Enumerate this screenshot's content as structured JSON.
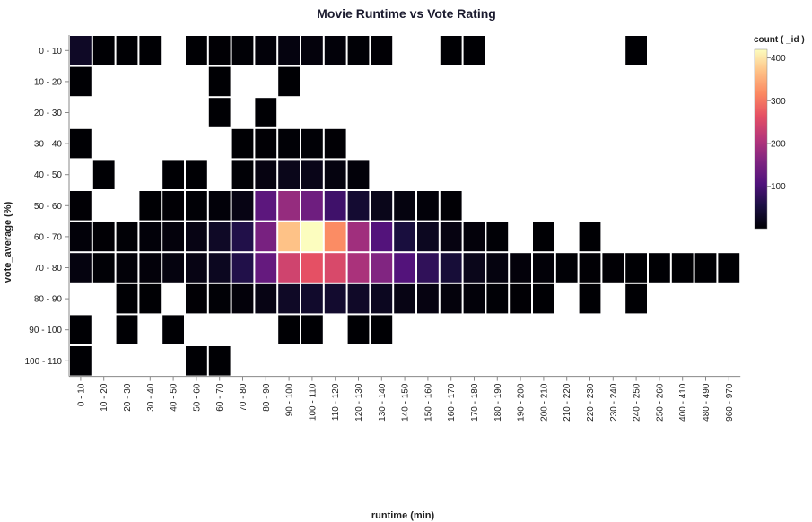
{
  "chart_data": {
    "type": "heatmap",
    "title": "Movie Runtime vs Vote Rating",
    "xlabel": "runtime (min)",
    "ylabel": "vote_average (%)",
    "x_categories": [
      "0 - 10",
      "10 - 20",
      "20 - 30",
      "30 - 40",
      "40 - 50",
      "50 - 60",
      "60 - 70",
      "70 - 80",
      "80 - 90",
      "90 - 100",
      "100 - 110",
      "110 - 120",
      "120 - 130",
      "130 - 140",
      "140 - 150",
      "150 - 160",
      "160 - 170",
      "170 - 180",
      "180 - 190",
      "190 - 200",
      "200 - 210",
      "210 - 220",
      "220 - 230",
      "230 - 240",
      "240 - 250",
      "250 - 260",
      "400 - 410",
      "480 - 490",
      "960 - 970"
    ],
    "y_categories": [
      "0 - 10",
      "10 - 20",
      "20 - 30",
      "30 - 40",
      "40 - 50",
      "50 - 60",
      "60 - 70",
      "70 - 80",
      "80 - 90",
      "90 - 100",
      "100 - 110"
    ],
    "legend": {
      "title": "count ( _id )",
      "ticks": [
        100,
        200,
        300,
        400
      ],
      "domain": [
        1,
        420
      ],
      "placement": "top-right"
    },
    "cells": [
      {
        "x": "0 - 10",
        "y": "0 - 10",
        "value": 30
      },
      {
        "x": "10 - 20",
        "y": "0 - 10",
        "value": 1
      },
      {
        "x": "20 - 30",
        "y": "0 - 10",
        "value": 1
      },
      {
        "x": "30 - 40",
        "y": "0 - 10",
        "value": 1
      },
      {
        "x": "50 - 60",
        "y": "0 - 10",
        "value": 1
      },
      {
        "x": "60 - 70",
        "y": "0 - 10",
        "value": 2
      },
      {
        "x": "70 - 80",
        "y": "0 - 10",
        "value": 3
      },
      {
        "x": "80 - 90",
        "y": "0 - 10",
        "value": 5
      },
      {
        "x": "90 - 100",
        "y": "0 - 10",
        "value": 10
      },
      {
        "x": "100 - 110",
        "y": "0 - 10",
        "value": 8
      },
      {
        "x": "110 - 120",
        "y": "0 - 10",
        "value": 5
      },
      {
        "x": "120 - 130",
        "y": "0 - 10",
        "value": 3
      },
      {
        "x": "130 - 140",
        "y": "0 - 10",
        "value": 2
      },
      {
        "x": "160 - 170",
        "y": "0 - 10",
        "value": 1
      },
      {
        "x": "170 - 180",
        "y": "0 - 10",
        "value": 1
      },
      {
        "x": "240 - 250",
        "y": "0 - 10",
        "value": 1
      },
      {
        "x": "0 - 10",
        "y": "10 - 20",
        "value": 1
      },
      {
        "x": "60 - 70",
        "y": "10 - 20",
        "value": 1
      },
      {
        "x": "90 - 100",
        "y": "10 - 20",
        "value": 1
      },
      {
        "x": "60 - 70",
        "y": "20 - 30",
        "value": 1
      },
      {
        "x": "80 - 90",
        "y": "20 - 30",
        "value": 1
      },
      {
        "x": "0 - 10",
        "y": "30 - 40",
        "value": 1
      },
      {
        "x": "70 - 80",
        "y": "30 - 40",
        "value": 1
      },
      {
        "x": "80 - 90",
        "y": "30 - 40",
        "value": 2
      },
      {
        "x": "90 - 100",
        "y": "30 - 40",
        "value": 3
      },
      {
        "x": "100 - 110",
        "y": "30 - 40",
        "value": 3
      },
      {
        "x": "110 - 120",
        "y": "30 - 40",
        "value": 2
      },
      {
        "x": "10 - 20",
        "y": "40 - 50",
        "value": 1
      },
      {
        "x": "40 - 50",
        "y": "40 - 50",
        "value": 1
      },
      {
        "x": "50 - 60",
        "y": "40 - 50",
        "value": 1
      },
      {
        "x": "70 - 80",
        "y": "40 - 50",
        "value": 3
      },
      {
        "x": "80 - 90",
        "y": "40 - 50",
        "value": 12
      },
      {
        "x": "90 - 100",
        "y": "40 - 50",
        "value": 20
      },
      {
        "x": "100 - 110",
        "y": "40 - 50",
        "value": 18
      },
      {
        "x": "110 - 120",
        "y": "40 - 50",
        "value": 10
      },
      {
        "x": "120 - 130",
        "y": "40 - 50",
        "value": 5
      },
      {
        "x": "0 - 10",
        "y": "50 - 60",
        "value": 2
      },
      {
        "x": "30 - 40",
        "y": "50 - 60",
        "value": 1
      },
      {
        "x": "40 - 50",
        "y": "50 - 60",
        "value": 2
      },
      {
        "x": "50 - 60",
        "y": "50 - 60",
        "value": 3
      },
      {
        "x": "60 - 70",
        "y": "50 - 60",
        "value": 5
      },
      {
        "x": "70 - 80",
        "y": "50 - 60",
        "value": 15
      },
      {
        "x": "80 - 90",
        "y": "50 - 60",
        "value": 120
      },
      {
        "x": "90 - 100",
        "y": "50 - 60",
        "value": 180
      },
      {
        "x": "100 - 110",
        "y": "50 - 60",
        "value": 140
      },
      {
        "x": "110 - 120",
        "y": "50 - 60",
        "value": 90
      },
      {
        "x": "120 - 130",
        "y": "50 - 60",
        "value": 40
      },
      {
        "x": "130 - 140",
        "y": "50 - 60",
        "value": 20
      },
      {
        "x": "140 - 150",
        "y": "50 - 60",
        "value": 10
      },
      {
        "x": "150 - 160",
        "y": "50 - 60",
        "value": 5
      },
      {
        "x": "160 - 170",
        "y": "50 - 60",
        "value": 2
      },
      {
        "x": "0 - 10",
        "y": "60 - 70",
        "value": 5
      },
      {
        "x": "10 - 20",
        "y": "60 - 70",
        "value": 2
      },
      {
        "x": "20 - 30",
        "y": "60 - 70",
        "value": 3
      },
      {
        "x": "30 - 40",
        "y": "60 - 70",
        "value": 5
      },
      {
        "x": "40 - 50",
        "y": "60 - 70",
        "value": 8
      },
      {
        "x": "50 - 60",
        "y": "60 - 70",
        "value": 15
      },
      {
        "x": "60 - 70",
        "y": "60 - 70",
        "value": 30
      },
      {
        "x": "70 - 80",
        "y": "60 - 70",
        "value": 60
      },
      {
        "x": "80 - 90",
        "y": "60 - 70",
        "value": 150
      },
      {
        "x": "90 - 100",
        "y": "60 - 70",
        "value": 370
      },
      {
        "x": "100 - 110",
        "y": "60 - 70",
        "value": 420
      },
      {
        "x": "110 - 120",
        "y": "60 - 70",
        "value": 320
      },
      {
        "x": "120 - 130",
        "y": "60 - 70",
        "value": 190
      },
      {
        "x": "130 - 140",
        "y": "60 - 70",
        "value": 110
      },
      {
        "x": "140 - 150",
        "y": "60 - 70",
        "value": 50
      },
      {
        "x": "150 - 160",
        "y": "60 - 70",
        "value": 25
      },
      {
        "x": "160 - 170",
        "y": "60 - 70",
        "value": 12
      },
      {
        "x": "170 - 180",
        "y": "60 - 70",
        "value": 6
      },
      {
        "x": "180 - 190",
        "y": "60 - 70",
        "value": 3
      },
      {
        "x": "200 - 210",
        "y": "60 - 70",
        "value": 1
      },
      {
        "x": "220 - 230",
        "y": "60 - 70",
        "value": 1
      },
      {
        "x": "0 - 10",
        "y": "70 - 80",
        "value": 10
      },
      {
        "x": "10 - 20",
        "y": "70 - 80",
        "value": 3
      },
      {
        "x": "20 - 30",
        "y": "70 - 80",
        "value": 4
      },
      {
        "x": "30 - 40",
        "y": "70 - 80",
        "value": 6
      },
      {
        "x": "40 - 50",
        "y": "70 - 80",
        "value": 10
      },
      {
        "x": "50 - 60",
        "y": "70 - 80",
        "value": 15
      },
      {
        "x": "60 - 70",
        "y": "70 - 80",
        "value": 25
      },
      {
        "x": "70 - 80",
        "y": "70 - 80",
        "value": 60
      },
      {
        "x": "80 - 90",
        "y": "70 - 80",
        "value": 130
      },
      {
        "x": "90 - 100",
        "y": "70 - 80",
        "value": 240
      },
      {
        "x": "100 - 110",
        "y": "70 - 80",
        "value": 265
      },
      {
        "x": "110 - 120",
        "y": "70 - 80",
        "value": 250
      },
      {
        "x": "120 - 130",
        "y": "70 - 80",
        "value": 200
      },
      {
        "x": "130 - 140",
        "y": "70 - 80",
        "value": 160
      },
      {
        "x": "140 - 150",
        "y": "70 - 80",
        "value": 110
      },
      {
        "x": "150 - 160",
        "y": "70 - 80",
        "value": 75
      },
      {
        "x": "160 - 170",
        "y": "70 - 80",
        "value": 45
      },
      {
        "x": "170 - 180",
        "y": "70 - 80",
        "value": 20
      },
      {
        "x": "180 - 190",
        "y": "70 - 80",
        "value": 10
      },
      {
        "x": "190 - 200",
        "y": "70 - 80",
        "value": 6
      },
      {
        "x": "200 - 210",
        "y": "70 - 80",
        "value": 4
      },
      {
        "x": "210 - 220",
        "y": "70 - 80",
        "value": 3
      },
      {
        "x": "220 - 230",
        "y": "70 - 80",
        "value": 2
      },
      {
        "x": "230 - 240",
        "y": "70 - 80",
        "value": 2
      },
      {
        "x": "240 - 250",
        "y": "70 - 80",
        "value": 1
      },
      {
        "x": "250 - 260",
        "y": "70 - 80",
        "value": 1
      },
      {
        "x": "400 - 410",
        "y": "70 - 80",
        "value": 1
      },
      {
        "x": "480 - 490",
        "y": "70 - 80",
        "value": 1
      },
      {
        "x": "960 - 970",
        "y": "70 - 80",
        "value": 1
      },
      {
        "x": "20 - 30",
        "y": "80 - 90",
        "value": 1
      },
      {
        "x": "30 - 40",
        "y": "80 - 90",
        "value": 1
      },
      {
        "x": "50 - 60",
        "y": "80 - 90",
        "value": 2
      },
      {
        "x": "60 - 70",
        "y": "80 - 90",
        "value": 3
      },
      {
        "x": "70 - 80",
        "y": "80 - 90",
        "value": 6
      },
      {
        "x": "80 - 90",
        "y": "80 - 90",
        "value": 15
      },
      {
        "x": "90 - 100",
        "y": "80 - 90",
        "value": 30
      },
      {
        "x": "100 - 110",
        "y": "80 - 90",
        "value": 35
      },
      {
        "x": "110 - 120",
        "y": "80 - 90",
        "value": 38
      },
      {
        "x": "120 - 130",
        "y": "80 - 90",
        "value": 32
      },
      {
        "x": "130 - 140",
        "y": "80 - 90",
        "value": 25
      },
      {
        "x": "140 - 150",
        "y": "80 - 90",
        "value": 15
      },
      {
        "x": "150 - 160",
        "y": "80 - 90",
        "value": 12
      },
      {
        "x": "160 - 170",
        "y": "80 - 90",
        "value": 8
      },
      {
        "x": "170 - 180",
        "y": "80 - 90",
        "value": 5
      },
      {
        "x": "180 - 190",
        "y": "80 - 90",
        "value": 3
      },
      {
        "x": "190 - 200",
        "y": "80 - 90",
        "value": 2
      },
      {
        "x": "200 - 210",
        "y": "80 - 90",
        "value": 1
      },
      {
        "x": "220 - 230",
        "y": "80 - 90",
        "value": 1
      },
      {
        "x": "240 - 250",
        "y": "80 - 90",
        "value": 1
      },
      {
        "x": "0 - 10",
        "y": "90 - 100",
        "value": 1
      },
      {
        "x": "20 - 30",
        "y": "90 - 100",
        "value": 1
      },
      {
        "x": "40 - 50",
        "y": "90 - 100",
        "value": 1
      },
      {
        "x": "90 - 100",
        "y": "90 - 100",
        "value": 1
      },
      {
        "x": "100 - 110",
        "y": "90 - 100",
        "value": 1
      },
      {
        "x": "120 - 130",
        "y": "90 - 100",
        "value": 1
      },
      {
        "x": "130 - 140",
        "y": "90 - 100",
        "value": 1
      },
      {
        "x": "0 - 10",
        "y": "100 - 110",
        "value": 1
      },
      {
        "x": "50 - 60",
        "y": "100 - 110",
        "value": 1
      },
      {
        "x": "60 - 70",
        "y": "100 - 110",
        "value": 1
      }
    ]
  }
}
